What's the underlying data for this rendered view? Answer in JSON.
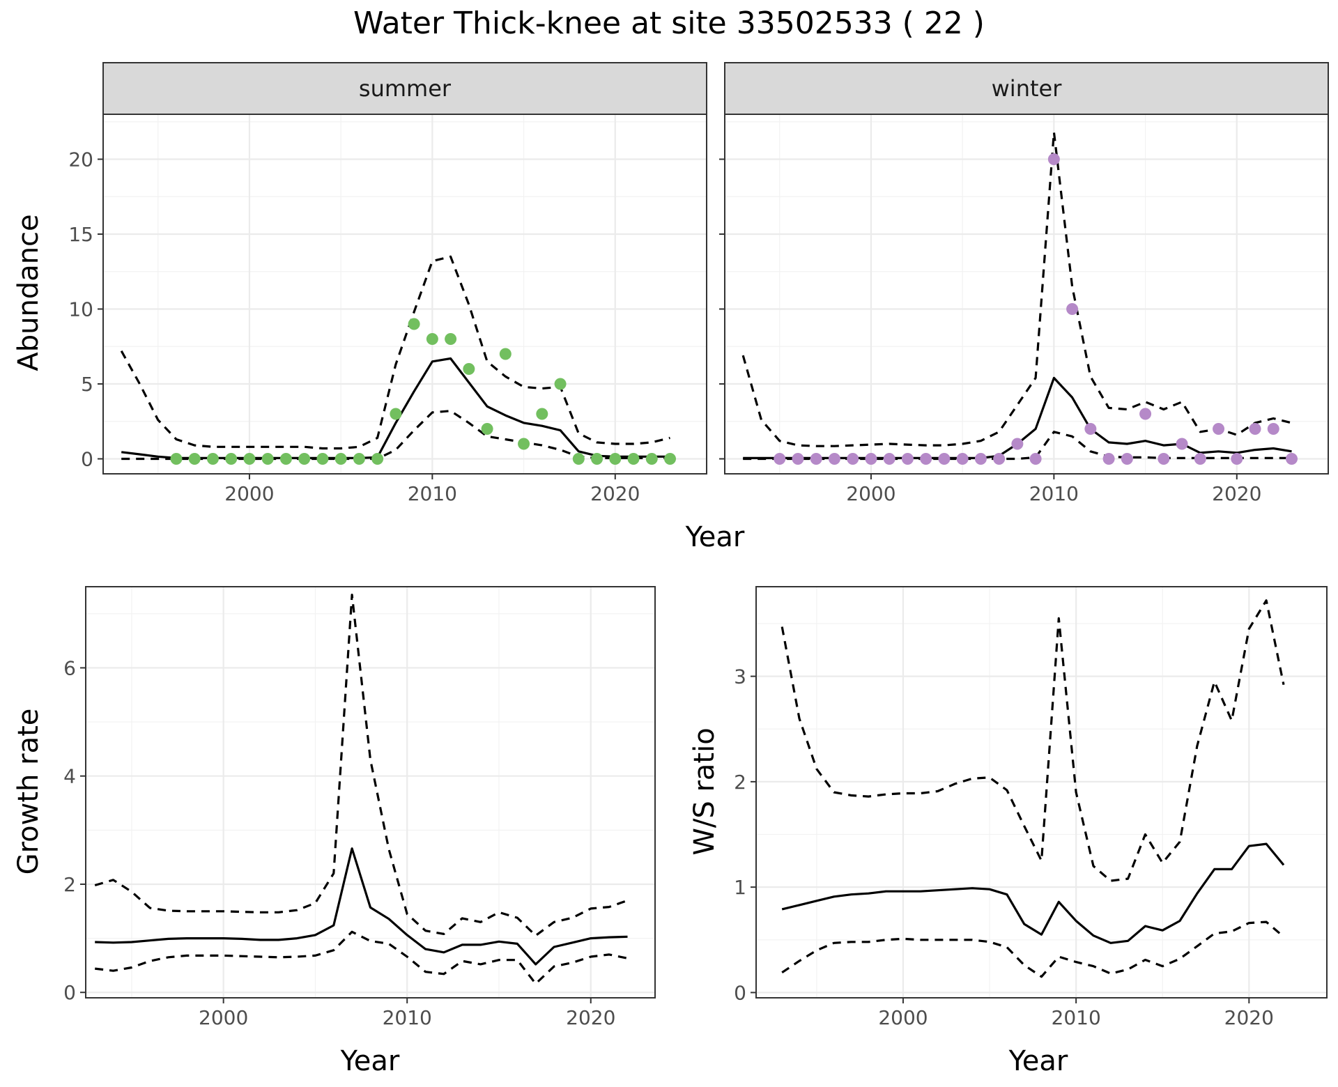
{
  "title": "Water Thick-knee at site 33502533 ( 22 )",
  "colors": {
    "summer_point": "#72bf5f",
    "winter_point": "#b589c8",
    "line": "#000000"
  },
  "chart_data": [
    {
      "type": "line",
      "panel": "summer",
      "strip_label": "summer",
      "xlabel": "Year",
      "ylabel": "Abundance",
      "xlim": [
        1992,
        2025
      ],
      "ylim": [
        -1,
        23
      ],
      "xticks": [
        2000,
        2010,
        2020
      ],
      "yticks": [
        0,
        5,
        10,
        15,
        20
      ],
      "tick_labels_x": [
        "2000",
        "2010",
        "2020"
      ],
      "tick_labels_y": [
        "0",
        "5",
        "10",
        "15",
        "20"
      ],
      "grid": true,
      "point_color": "#72bf5f",
      "points": {
        "x": [
          1996,
          1997,
          1998,
          1999,
          2000,
          2001,
          2002,
          2003,
          2004,
          2005,
          2006,
          2007,
          2008,
          2009,
          2010,
          2011,
          2012,
          2013,
          2014,
          2015,
          2016,
          2017,
          2018,
          2019,
          2020,
          2021,
          2022,
          2023
        ],
        "y": [
          0,
          0,
          0,
          0,
          0,
          0,
          0,
          0,
          0,
          0,
          0,
          0,
          3,
          9,
          8,
          8,
          6,
          2,
          7,
          1,
          3,
          5,
          0,
          0,
          0,
          0,
          0,
          0
        ]
      },
      "series": [
        {
          "role": "estimate",
          "style": "solid",
          "x": [
            1993,
            1994,
            1995,
            1996,
            1997,
            1998,
            1999,
            2000,
            2001,
            2002,
            2003,
            2004,
            2005,
            2006,
            2007,
            2008,
            2009,
            2010,
            2011,
            2012,
            2013,
            2014,
            2015,
            2016,
            2017,
            2018,
            2019,
            2020,
            2021,
            2022,
            2023
          ],
          "y": [
            0.45,
            0.3,
            0.15,
            0.05,
            0.05,
            0.05,
            0.05,
            0.05,
            0.05,
            0.05,
            0.05,
            0.05,
            0.05,
            0.05,
            0.1,
            2.4,
            4.5,
            6.5,
            6.7,
            5.1,
            3.5,
            2.9,
            2.4,
            2.2,
            1.9,
            0.5,
            0.2,
            0.15,
            0.15,
            0.15,
            0.15
          ]
        },
        {
          "role": "upper",
          "style": "dashed",
          "x": [
            1993,
            1994,
            1995,
            1996,
            1997,
            1998,
            1999,
            2000,
            2001,
            2002,
            2003,
            2004,
            2005,
            2006,
            2007,
            2008,
            2009,
            2010,
            2011,
            2012,
            2013,
            2014,
            2015,
            2016,
            2017,
            2018,
            2019,
            2020,
            2021,
            2022,
            2023
          ],
          "y": [
            7.2,
            5.0,
            2.6,
            1.3,
            0.9,
            0.8,
            0.8,
            0.8,
            0.8,
            0.8,
            0.8,
            0.7,
            0.7,
            0.8,
            1.4,
            6.3,
            9.8,
            13.2,
            13.5,
            10.3,
            6.5,
            5.5,
            4.8,
            4.7,
            4.8,
            1.7,
            1.1,
            1.0,
            1.0,
            1.1,
            1.4
          ]
        },
        {
          "role": "lower",
          "style": "dashed",
          "x": [
            1993,
            1994,
            1995,
            1996,
            1997,
            1998,
            1999,
            2000,
            2001,
            2002,
            2003,
            2004,
            2005,
            2006,
            2007,
            2008,
            2009,
            2010,
            2011,
            2012,
            2013,
            2014,
            2015,
            2016,
            2017,
            2018,
            2019,
            2020,
            2021,
            2022,
            2023
          ],
          "y": [
            0,
            0,
            0,
            0,
            0,
            0,
            0,
            0,
            0,
            0,
            0,
            0,
            0,
            0,
            0,
            0.6,
            1.9,
            3.1,
            3.2,
            2.4,
            1.5,
            1.3,
            1.1,
            0.9,
            0.6,
            0.15,
            0.05,
            0.05,
            0.05,
            0.05,
            0.05
          ]
        }
      ]
    },
    {
      "type": "line",
      "panel": "winter",
      "strip_label": "winter",
      "xlabel": "Year",
      "ylabel": "Abundance",
      "xlim": [
        1992,
        2025
      ],
      "ylim": [
        -1,
        23
      ],
      "xticks": [
        2000,
        2010,
        2020
      ],
      "yticks": [
        0,
        5,
        10,
        15,
        20
      ],
      "tick_labels_x": [
        "2000",
        "2010",
        "2020"
      ],
      "tick_labels_y": [],
      "grid": true,
      "point_color": "#b589c8",
      "points": {
        "x": [
          1995,
          1996,
          1997,
          1998,
          1999,
          2000,
          2001,
          2002,
          2003,
          2004,
          2005,
          2006,
          2007,
          2008,
          2009,
          2010,
          2011,
          2012,
          2013,
          2014,
          2015,
          2016,
          2017,
          2018,
          2019,
          2020,
          2021,
          2022,
          2023
        ],
        "y": [
          0,
          0,
          0,
          0,
          0,
          0,
          0,
          0,
          0,
          0,
          0,
          0,
          0,
          1,
          0,
          20,
          10,
          2,
          0,
          0,
          3,
          0,
          1,
          0,
          2,
          0,
          2,
          2,
          0
        ]
      },
      "series": [
        {
          "role": "estimate",
          "style": "solid",
          "x": [
            1993,
            1994,
            1995,
            1996,
            1997,
            1998,
            1999,
            2000,
            2001,
            2002,
            2003,
            2004,
            2005,
            2006,
            2007,
            2008,
            2009,
            2010,
            2011,
            2012,
            2013,
            2014,
            2015,
            2016,
            2017,
            2018,
            2019,
            2020,
            2021,
            2022,
            2023
          ],
          "y": [
            0.05,
            0.05,
            0.05,
            0.05,
            0.05,
            0.05,
            0.05,
            0.05,
            0.05,
            0.05,
            0.05,
            0.05,
            0.05,
            0.05,
            0.2,
            1.0,
            2.0,
            5.4,
            4.1,
            2.0,
            1.1,
            1.0,
            1.2,
            0.9,
            1.0,
            0.4,
            0.5,
            0.4,
            0.6,
            0.7,
            0.5
          ]
        },
        {
          "role": "upper",
          "style": "dashed",
          "x": [
            1993,
            1994,
            1995,
            1996,
            1997,
            1998,
            1999,
            2000,
            2001,
            2002,
            2003,
            2004,
            2005,
            2006,
            2007,
            2008,
            2009,
            2010,
            2011,
            2012,
            2013,
            2014,
            2015,
            2016,
            2017,
            2018,
            2019,
            2020,
            2021,
            2022,
            2023
          ],
          "y": [
            6.9,
            2.6,
            1.2,
            0.9,
            0.85,
            0.85,
            0.9,
            0.95,
            1.0,
            0.95,
            0.9,
            0.9,
            1.0,
            1.2,
            1.8,
            3.6,
            5.4,
            21.8,
            11.5,
            5.5,
            3.4,
            3.3,
            3.8,
            3.3,
            3.8,
            1.8,
            2.0,
            1.6,
            2.4,
            2.7,
            2.4
          ]
        },
        {
          "role": "lower",
          "style": "dashed",
          "x": [
            1993,
            1994,
            1995,
            1996,
            1997,
            1998,
            1999,
            2000,
            2001,
            2002,
            2003,
            2004,
            2005,
            2006,
            2007,
            2008,
            2009,
            2010,
            2011,
            2012,
            2013,
            2014,
            2015,
            2016,
            2017,
            2018,
            2019,
            2020,
            2021,
            2022,
            2023
          ],
          "y": [
            0,
            0,
            0,
            0,
            0,
            0,
            0,
            0,
            0,
            0,
            0,
            0,
            0,
            0,
            0,
            0,
            0.1,
            1.8,
            1.5,
            0.5,
            0.15,
            0.1,
            0.1,
            0.05,
            0.05,
            0.05,
            0.05,
            0.05,
            0.05,
            0.05,
            0.05
          ]
        }
      ]
    },
    {
      "type": "line",
      "panel": "growth",
      "xlabel": "Year",
      "ylabel": "Growth rate",
      "xlim": [
        1992.5,
        2023.5
      ],
      "ylim": [
        -0.1,
        7.5
      ],
      "xticks": [
        2000,
        2010,
        2020
      ],
      "yticks": [
        0,
        2,
        4,
        6
      ],
      "tick_labels_x": [
        "2000",
        "2010",
        "2020"
      ],
      "tick_labels_y": [
        "0",
        "2",
        "4",
        "6"
      ],
      "grid": true,
      "series": [
        {
          "role": "estimate",
          "style": "solid",
          "x": [
            1993,
            1994,
            1995,
            1996,
            1997,
            1998,
            1999,
            2000,
            2001,
            2002,
            2003,
            2004,
            2005,
            2006,
            2007,
            2008,
            2009,
            2010,
            2011,
            2012,
            2013,
            2014,
            2015,
            2016,
            2017,
            2018,
            2019,
            2020,
            2021,
            2022
          ],
          "y": [
            0.93,
            0.92,
            0.93,
            0.96,
            0.99,
            1.0,
            1.0,
            1.0,
            0.99,
            0.97,
            0.97,
            1.0,
            1.06,
            1.24,
            2.66,
            1.57,
            1.36,
            1.06,
            0.8,
            0.74,
            0.88,
            0.88,
            0.94,
            0.9,
            0.52,
            0.84,
            0.92,
            1.0,
            1.02,
            1.03
          ]
        },
        {
          "role": "upper",
          "style": "dashed",
          "x": [
            1993,
            1994,
            1995,
            1996,
            1997,
            1998,
            1999,
            2000,
            2001,
            2002,
            2003,
            2004,
            2005,
            2006,
            2007,
            2008,
            2009,
            2010,
            2011,
            2012,
            2013,
            2014,
            2015,
            2016,
            2017,
            2018,
            2019,
            2020,
            2021,
            2022
          ],
          "y": [
            1.98,
            2.08,
            1.86,
            1.56,
            1.51,
            1.5,
            1.5,
            1.5,
            1.49,
            1.48,
            1.48,
            1.52,
            1.65,
            2.2,
            7.35,
            4.3,
            2.65,
            1.45,
            1.14,
            1.08,
            1.37,
            1.3,
            1.48,
            1.38,
            1.05,
            1.3,
            1.38,
            1.55,
            1.58,
            1.7
          ]
        },
        {
          "role": "lower",
          "style": "dashed",
          "x": [
            1993,
            1994,
            1995,
            1996,
            1997,
            1998,
            1999,
            2000,
            2001,
            2002,
            2003,
            2004,
            2005,
            2006,
            2007,
            2008,
            2009,
            2010,
            2011,
            2012,
            2013,
            2014,
            2015,
            2016,
            2017,
            2018,
            2019,
            2020,
            2021,
            2022
          ],
          "y": [
            0.44,
            0.4,
            0.46,
            0.58,
            0.65,
            0.68,
            0.68,
            0.68,
            0.67,
            0.66,
            0.65,
            0.66,
            0.68,
            0.78,
            1.12,
            0.95,
            0.9,
            0.66,
            0.38,
            0.34,
            0.58,
            0.52,
            0.6,
            0.6,
            0.16,
            0.48,
            0.55,
            0.66,
            0.7,
            0.63
          ]
        }
      ]
    },
    {
      "type": "line",
      "panel": "ratio",
      "xlabel": "Year",
      "ylabel": "W/S ratio",
      "xlim": [
        1991.5,
        2024.5
      ],
      "ylim": [
        -0.05,
        3.85
      ],
      "xticks": [
        2000,
        2010,
        2020
      ],
      "yticks": [
        0,
        1,
        2,
        3
      ],
      "tick_labels_x": [
        "2000",
        "2010",
        "2020"
      ],
      "tick_labels_y": [
        "0",
        "1",
        "2",
        "3"
      ],
      "grid": true,
      "series": [
        {
          "role": "estimate",
          "style": "solid",
          "x": [
            1993,
            1994,
            1995,
            1996,
            1997,
            1998,
            1999,
            2000,
            2001,
            2002,
            2003,
            2004,
            2005,
            2006,
            2007,
            2008,
            2009,
            2010,
            2011,
            2012,
            2013,
            2014,
            2015,
            2016,
            2017,
            2018,
            2019,
            2020,
            2021,
            2022
          ],
          "y": [
            0.79,
            0.83,
            0.87,
            0.91,
            0.93,
            0.94,
            0.96,
            0.96,
            0.96,
            0.97,
            0.98,
            0.99,
            0.98,
            0.93,
            0.65,
            0.55,
            0.86,
            0.68,
            0.54,
            0.47,
            0.49,
            0.63,
            0.59,
            0.68,
            0.94,
            1.17,
            1.17,
            1.39,
            1.41,
            1.21
          ]
        },
        {
          "role": "upper",
          "style": "dashed",
          "x": [
            1993,
            1994,
            1995,
            1996,
            1997,
            1998,
            1999,
            2000,
            2001,
            2002,
            2003,
            2004,
            2005,
            2006,
            2007,
            2008,
            2009,
            2010,
            2011,
            2012,
            2013,
            2014,
            2015,
            2016,
            2017,
            2018,
            2019,
            2020,
            2021,
            2022
          ],
          "y": [
            3.47,
            2.6,
            2.12,
            1.9,
            1.87,
            1.86,
            1.88,
            1.89,
            1.89,
            1.91,
            1.98,
            2.03,
            2.04,
            1.92,
            1.58,
            1.25,
            3.55,
            1.9,
            1.2,
            1.06,
            1.08,
            1.5,
            1.23,
            1.43,
            2.34,
            2.95,
            2.58,
            3.45,
            3.72,
            2.92
          ]
        },
        {
          "role": "lower",
          "style": "dashed",
          "x": [
            1993,
            1994,
            1995,
            1996,
            1997,
            1998,
            1999,
            2000,
            2001,
            2002,
            2003,
            2004,
            2005,
            2006,
            2007,
            2008,
            2009,
            2010,
            2011,
            2012,
            2013,
            2014,
            2015,
            2016,
            2017,
            2018,
            2019,
            2020,
            2021,
            2022
          ],
          "y": [
            0.19,
            0.3,
            0.4,
            0.47,
            0.48,
            0.48,
            0.5,
            0.51,
            0.5,
            0.5,
            0.5,
            0.5,
            0.48,
            0.43,
            0.26,
            0.15,
            0.34,
            0.29,
            0.25,
            0.18,
            0.22,
            0.31,
            0.25,
            0.32,
            0.44,
            0.56,
            0.58,
            0.66,
            0.67,
            0.53
          ]
        }
      ]
    }
  ]
}
